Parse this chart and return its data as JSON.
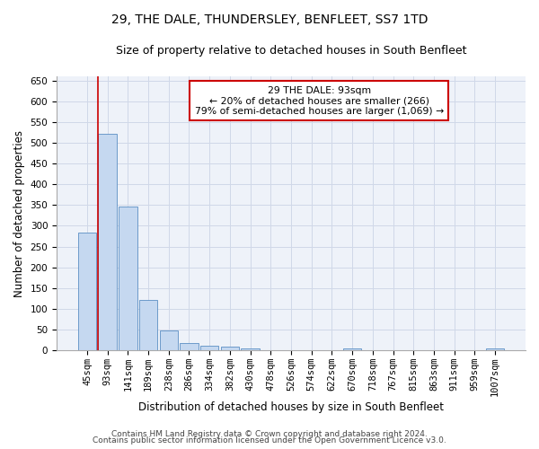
{
  "title": "29, THE DALE, THUNDERSLEY, BENFLEET, SS7 1TD",
  "subtitle": "Size of property relative to detached houses in South Benfleet",
  "xlabel": "Distribution of detached houses by size in South Benfleet",
  "ylabel": "Number of detached properties",
  "footer1": "Contains HM Land Registry data © Crown copyright and database right 2024.",
  "footer2": "Contains public sector information licensed under the Open Government Licence v3.0.",
  "annotation_title": "29 THE DALE: 93sqm",
  "annotation_line1": "← 20% of detached houses are smaller (266)",
  "annotation_line2": "79% of semi-detached houses are larger (1,069) →",
  "bar_labels": [
    "45sqm",
    "93sqm",
    "141sqm",
    "189sqm",
    "238sqm",
    "286sqm",
    "334sqm",
    "382sqm",
    "430sqm",
    "478sqm",
    "526sqm",
    "574sqm",
    "622sqm",
    "670sqm",
    "718sqm",
    "767sqm",
    "815sqm",
    "863sqm",
    "911sqm",
    "959sqm",
    "1007sqm"
  ],
  "bar_values": [
    283,
    522,
    347,
    122,
    48,
    17,
    11,
    8,
    5,
    0,
    0,
    0,
    0,
    5,
    0,
    0,
    0,
    0,
    0,
    0,
    5
  ],
  "bar_color": "#c5d8f0",
  "bar_edge_color": "#5b8ec4",
  "red_line_index": 1,
  "ylim": [
    0,
    660
  ],
  "yticks": [
    0,
    50,
    100,
    150,
    200,
    250,
    300,
    350,
    400,
    450,
    500,
    550,
    600,
    650
  ],
  "grid_color": "#d0d8e8",
  "background_color": "#eef2f9",
  "annotation_box_color": "#ffffff",
  "annotation_box_edge": "#cc0000",
  "title_fontsize": 10,
  "subtitle_fontsize": 9,
  "xlabel_fontsize": 8.5,
  "ylabel_fontsize": 8.5,
  "tick_fontsize": 7.5,
  "annotation_fontsize": 7.8,
  "footer_fontsize": 6.5
}
